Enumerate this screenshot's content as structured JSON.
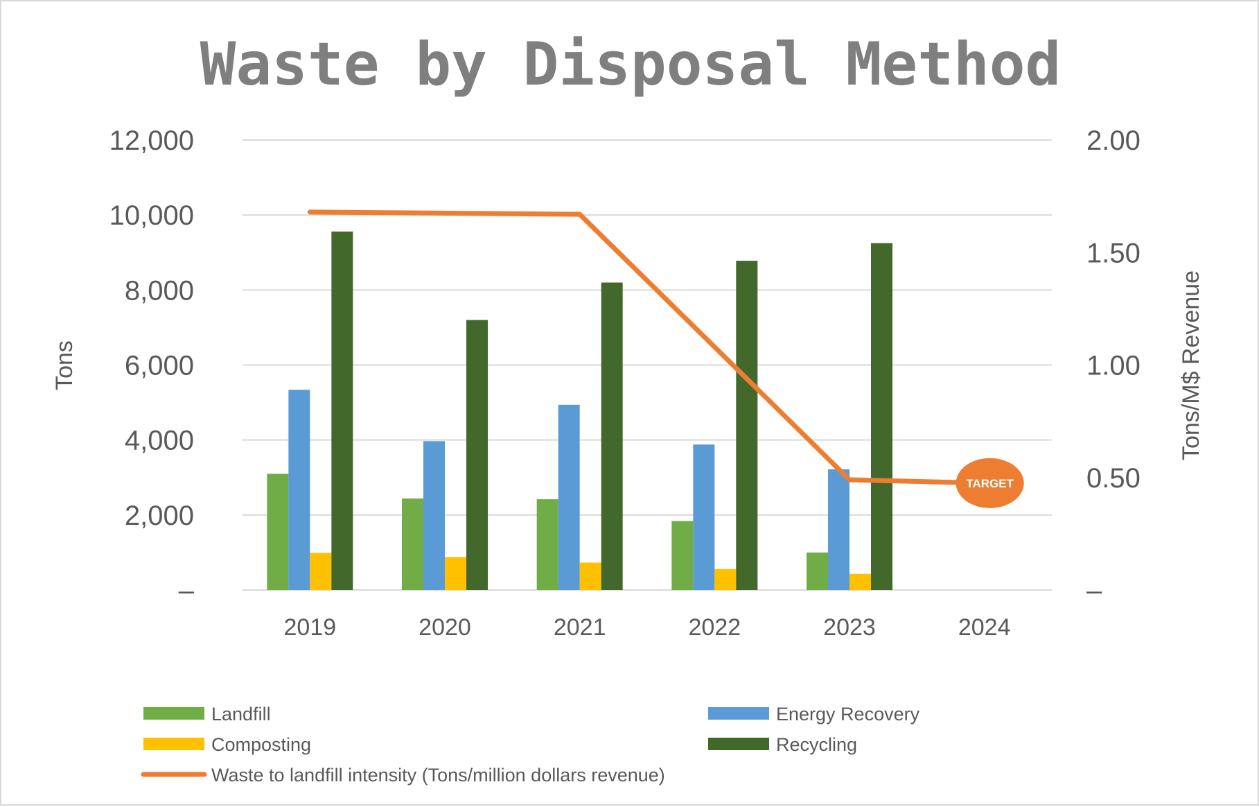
{
  "chart_data": {
    "type": "bar",
    "title": "Waste by Disposal Method",
    "categories": [
      "2019",
      "2020",
      "2021",
      "2022",
      "2023",
      "2024"
    ],
    "ylabel": "Tons",
    "y2label": "Tons/M$ Revenue",
    "ylim": [
      0,
      12000
    ],
    "y2lim": [
      0,
      2.0
    ],
    "yticks": [
      "–",
      "2,000",
      "4,000",
      "6,000",
      "8,000",
      "10,000",
      "12,000"
    ],
    "y2ticks": [
      "–",
      "0.50",
      "1.00",
      "1.50",
      "2.00"
    ],
    "grid": true,
    "legend_position": "bottom",
    "series": [
      {
        "name": "Landfill",
        "type": "bar",
        "color": "#70ad47",
        "values": [
          3100,
          2440,
          2420,
          1840,
          1000,
          null
        ]
      },
      {
        "name": "Energy Recovery",
        "type": "bar",
        "color": "#5b9bd5",
        "values": [
          5340,
          3970,
          4940,
          3880,
          3220,
          null
        ]
      },
      {
        "name": "Composting",
        "type": "bar",
        "color": "#ffc000",
        "values": [
          990,
          880,
          730,
          560,
          430,
          null
        ]
      },
      {
        "name": "Recycling",
        "type": "bar",
        "color": "#43682b",
        "values": [
          9560,
          7200,
          8200,
          8780,
          9250,
          null
        ]
      },
      {
        "name": "Waste to landfill intensity (Tons/million dollars revenue)",
        "type": "line",
        "axis": "right",
        "color": "#ed7d31",
        "values": [
          1.68,
          1.675,
          1.67,
          1.08,
          0.49,
          0.475
        ]
      }
    ],
    "annotation": {
      "label": "TARGET",
      "category": "2024",
      "value": 0.475,
      "color": "#ed7d31"
    }
  }
}
